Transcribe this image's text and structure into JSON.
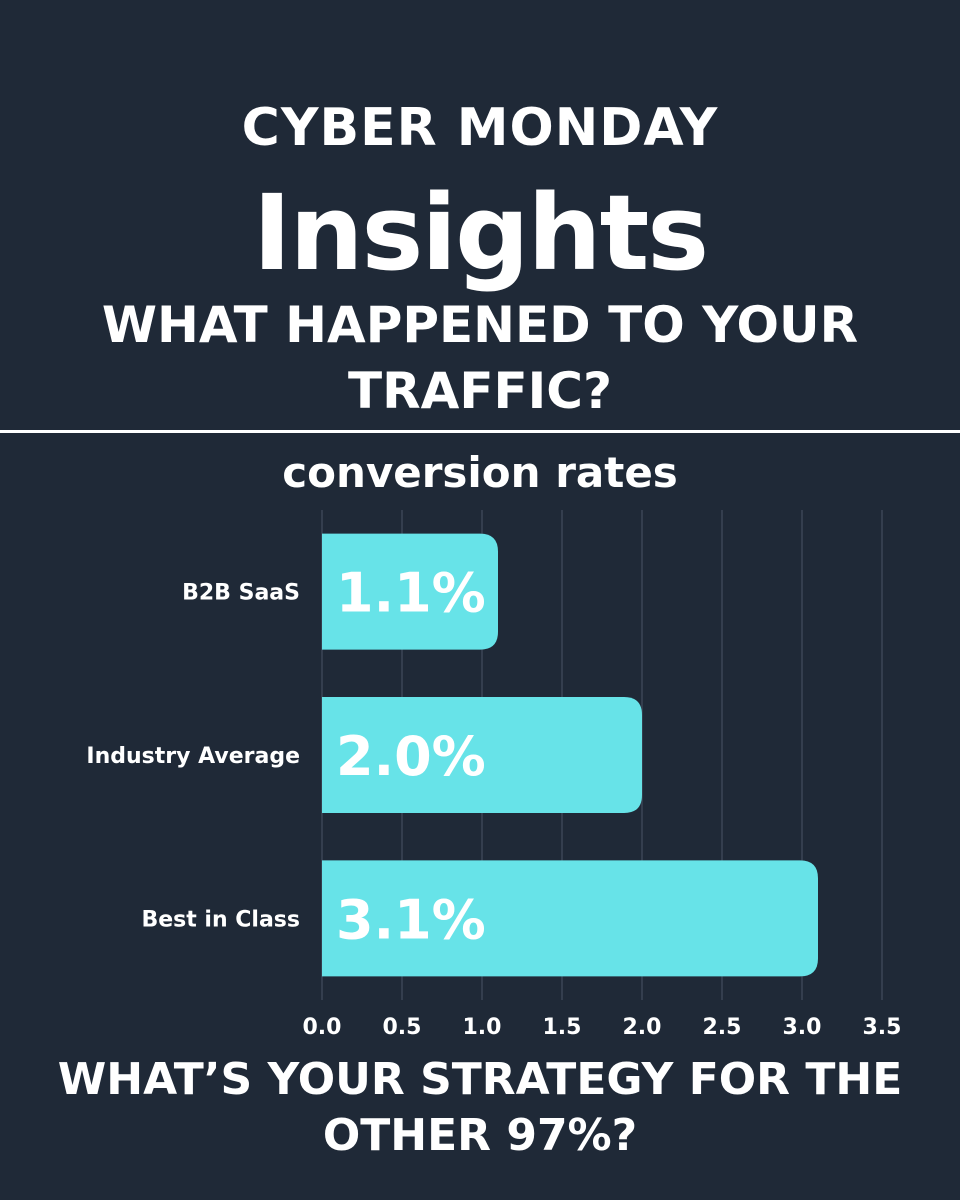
{
  "header": {
    "kicker": "CYBER MONDAY",
    "title": "Insights",
    "subtitle_line1": "WHAT HAPPENED TO YOUR",
    "subtitle_line2": "TRAFFIC?"
  },
  "footer": {
    "line1": "WHAT’S YOUR STRATEGY FOR THE",
    "line2": "OTHER 97%?"
  },
  "colors": {
    "background": "#1f2937",
    "bar": "#67e3e8",
    "text": "#ffffff",
    "gridline": "#3b4656"
  },
  "chart_data": {
    "type": "bar",
    "orientation": "horizontal",
    "title": "conversion rates",
    "categories": [
      "B2B SaaS",
      "Industry Average",
      "Best in Class"
    ],
    "values": [
      1.1,
      2.0,
      3.1
    ],
    "data_labels": [
      "1.1%",
      "2.0%",
      "3.1%"
    ],
    "xlim": [
      0,
      3.5
    ],
    "xticks": [
      0.0,
      0.5,
      1.0,
      1.5,
      2.0,
      2.5,
      3.0,
      3.5
    ],
    "xtick_labels": [
      "0.0",
      "0.5",
      "1.0",
      "1.5",
      "2.0",
      "2.5",
      "3.0",
      "3.5"
    ],
    "grid": true,
    "legend": "none"
  }
}
